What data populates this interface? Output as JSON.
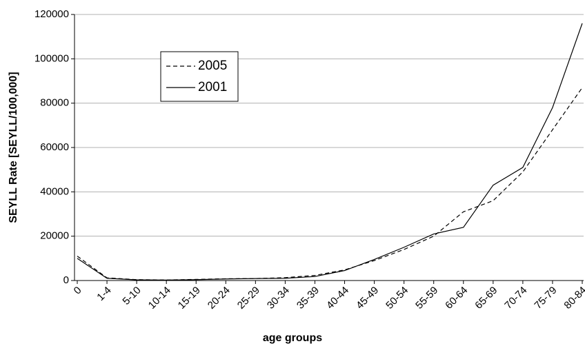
{
  "chart_data": {
    "type": "line",
    "x_label": "age groups",
    "y_label": "SEYLL Rate [SEYLL/100,000]",
    "categories": [
      "0",
      "1-4",
      "5-10",
      "10-14",
      "15-19",
      "20-24",
      "25-29",
      "30-34",
      "35-39",
      "40-44",
      "45-49",
      "50-54",
      "55-59",
      "60-64",
      "65-69",
      "70-74",
      "75-79",
      "80-84"
    ],
    "series": [
      {
        "name": "2005",
        "color": "#000000",
        "style": "dashed",
        "values": [
          11000,
          1200,
          400,
          250,
          500,
          800,
          900,
          1300,
          2300,
          4800,
          9000,
          14000,
          20000,
          31000,
          36000,
          49000,
          68000,
          87000
        ]
      },
      {
        "name": "2001",
        "color": "#000000",
        "style": "solid",
        "values": [
          10000,
          1000,
          300,
          200,
          400,
          700,
          900,
          1000,
          1800,
          4500,
          9500,
          15000,
          21000,
          24000,
          43000,
          51000,
          78000,
          116000
        ]
      }
    ],
    "ylim": [
      0,
      120000
    ],
    "yticks": [
      0,
      20000,
      40000,
      60000,
      80000,
      100000,
      120000
    ],
    "grid": true,
    "legend": "upper left"
  }
}
